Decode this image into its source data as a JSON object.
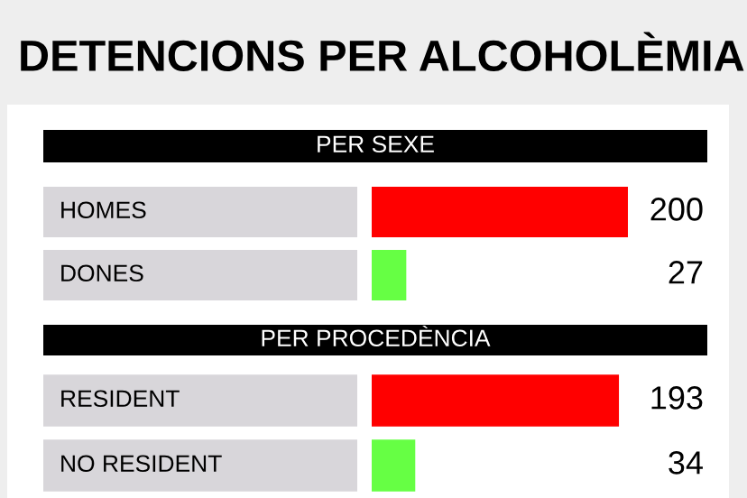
{
  "chart_data": [
    {
      "type": "bar",
      "orientation": "horizontal",
      "title": "DETENCIONS PER ALCOHOLÈMIA",
      "subtitle": "PER SEXE",
      "categories": [
        "HOMES",
        "DONES"
      ],
      "values": [
        200,
        27
      ],
      "colors": [
        "#ff0000",
        "#66ff44"
      ],
      "data_labels": true
    },
    {
      "type": "bar",
      "orientation": "horizontal",
      "subtitle": "PER PROCEDÈNCIA",
      "categories": [
        "RESIDENT",
        "NO RESIDENT"
      ],
      "values": [
        193,
        34
      ],
      "colors": [
        "#ff0000",
        "#66ff44"
      ],
      "data_labels": true
    }
  ]
}
